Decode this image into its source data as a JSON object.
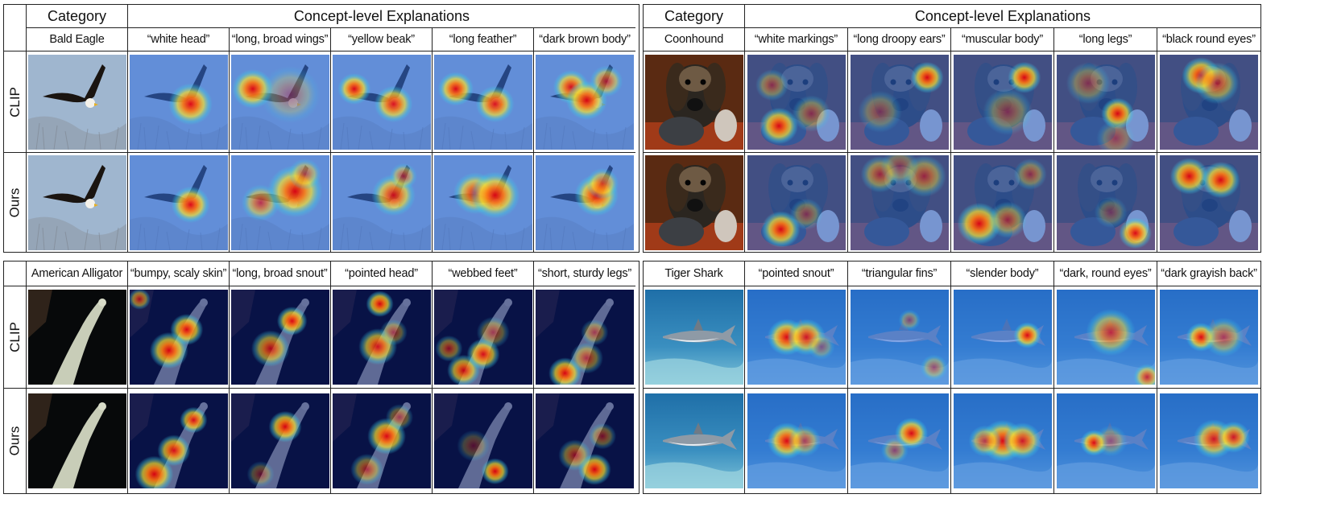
{
  "colors": {
    "heat_red": "#e00010",
    "heat_yellow": "#f8e030",
    "heat_cyan": "#40d0e0",
    "bg_blue": "#2f6de0",
    "bg_deep": "#0a1a78"
  },
  "panels": [
    {
      "category_header": "Category",
      "explanations_header": "Concept-level Explanations",
      "category": "Bald Eagle",
      "scene": "eagle",
      "concepts": [
        "“white head”",
        "“long, broad wings”",
        "“yellow beak”",
        "“long feather”",
        "“dark brown body”"
      ],
      "rows": [
        {
          "label": "CLIP",
          "heatmaps": [
            [
              [
                0.62,
                0.52,
                0.16,
                1
              ]
            ],
            [
              [
                0.22,
                0.36,
                0.15,
                1
              ],
              [
                0.6,
                0.42,
                0.22,
                0.35
              ]
            ],
            [
              [
                0.22,
                0.36,
                0.12,
                1
              ],
              [
                0.62,
                0.52,
                0.14,
                0.95
              ]
            ],
            [
              [
                0.22,
                0.36,
                0.13,
                1
              ],
              [
                0.62,
                0.52,
                0.14,
                0.95
              ]
            ],
            [
              [
                0.36,
                0.34,
                0.13,
                0.95
              ],
              [
                0.52,
                0.48,
                0.15,
                1
              ],
              [
                0.72,
                0.28,
                0.12,
                0.7
              ]
            ]
          ]
        },
        {
          "label": "Ours",
          "heatmaps": [
            [
              [
                0.62,
                0.52,
                0.14,
                1
              ]
            ],
            [
              [
                0.3,
                0.5,
                0.14,
                0.7
              ],
              [
                0.65,
                0.38,
                0.2,
                1
              ],
              [
                0.75,
                0.2,
                0.12,
                0.6
              ]
            ],
            [
              [
                0.62,
                0.42,
                0.16,
                0.9
              ],
              [
                0.72,
                0.22,
                0.1,
                0.6
              ]
            ],
            [
              [
                0.42,
                0.4,
                0.16,
                0.9
              ],
              [
                0.62,
                0.42,
                0.18,
                1
              ]
            ],
            [
              [
                0.62,
                0.42,
                0.16,
                1
              ],
              [
                0.68,
                0.3,
                0.12,
                0.7
              ]
            ]
          ]
        }
      ]
    },
    {
      "category_header": "Category",
      "explanations_header": "Concept-level Explanations",
      "category": "Coonhound",
      "scene": "dog",
      "concepts": [
        "“white markings”",
        "“long droopy ears”",
        "“muscular body”",
        "“long legs”",
        "“black round eyes”"
      ],
      "rows": [
        {
          "label": "CLIP",
          "heatmaps": [
            [
              [
                0.32,
                0.75,
                0.14,
                1
              ],
              [
                0.25,
                0.32,
                0.12,
                0.5
              ],
              [
                0.65,
                0.62,
                0.14,
                0.5
              ]
            ],
            [
              [
                0.78,
                0.24,
                0.12,
                1
              ],
              [
                0.3,
                0.6,
                0.16,
                0.4
              ]
            ],
            [
              [
                0.72,
                0.24,
                0.12,
                1
              ],
              [
                0.55,
                0.6,
                0.18,
                0.45
              ]
            ],
            [
              [
                0.62,
                0.62,
                0.12,
                1
              ],
              [
                0.32,
                0.3,
                0.16,
                0.45
              ],
              [
                0.6,
                0.88,
                0.14,
                0.35
              ]
            ],
            [
              [
                0.42,
                0.22,
                0.14,
                1
              ],
              [
                0.58,
                0.3,
                0.16,
                0.7
              ]
            ]
          ]
        },
        {
          "label": "Ours",
          "heatmaps": [
            [
              [
                0.34,
                0.78,
                0.14,
                1
              ],
              [
                0.6,
                0.62,
                0.12,
                0.45
              ]
            ],
            [
              [
                0.3,
                0.2,
                0.14,
                0.6
              ],
              [
                0.75,
                0.22,
                0.16,
                0.6
              ],
              [
                0.5,
                0.12,
                0.14,
                0.4
              ]
            ],
            [
              [
                0.26,
                0.72,
                0.16,
                1
              ],
              [
                0.55,
                0.68,
                0.14,
                0.6
              ],
              [
                0.78,
                0.2,
                0.12,
                0.5
              ]
            ],
            [
              [
                0.8,
                0.82,
                0.12,
                1
              ],
              [
                0.55,
                0.6,
                0.12,
                0.35
              ]
            ],
            [
              [
                0.3,
                0.22,
                0.14,
                1
              ],
              [
                0.62,
                0.26,
                0.14,
                1
              ]
            ]
          ]
        }
      ]
    },
    {
      "category_header": null,
      "explanations_header": null,
      "category": "American Alligator",
      "scene": "gator",
      "concepts": [
        "“bumpy, scaly skin”",
        "“long, broad snout”",
        "“pointed head”",
        "“webbed feet”",
        "“short, sturdy legs”"
      ],
      "rows": [
        {
          "label": "CLIP",
          "heatmaps": [
            [
              [
                0.58,
                0.42,
                0.12,
                1
              ],
              [
                0.4,
                0.64,
                0.14,
                1
              ],
              [
                0.1,
                0.1,
                0.08,
                0.7
              ]
            ],
            [
              [
                0.62,
                0.33,
                0.11,
                1
              ],
              [
                0.4,
                0.62,
                0.14,
                0.8
              ]
            ],
            [
              [
                0.48,
                0.15,
                0.1,
                1
              ],
              [
                0.46,
                0.6,
                0.14,
                0.9
              ],
              [
                0.62,
                0.45,
                0.1,
                0.5
              ]
            ],
            [
              [
                0.3,
                0.85,
                0.12,
                0.9
              ],
              [
                0.5,
                0.68,
                0.12,
                0.95
              ],
              [
                0.6,
                0.45,
                0.12,
                0.5
              ],
              [
                0.15,
                0.62,
                0.1,
                0.6
              ]
            ],
            [
              [
                0.3,
                0.88,
                0.12,
                1
              ],
              [
                0.52,
                0.72,
                0.12,
                0.6
              ],
              [
                0.6,
                0.45,
                0.1,
                0.5
              ]
            ]
          ]
        },
        {
          "label": "Ours",
          "heatmaps": [
            [
              [
                0.65,
                0.28,
                0.1,
                0.95
              ],
              [
                0.45,
                0.6,
                0.12,
                0.95
              ],
              [
                0.25,
                0.85,
                0.14,
                1
              ]
            ],
            [
              [
                0.55,
                0.35,
                0.12,
                1
              ],
              [
                0.3,
                0.85,
                0.1,
                0.4
              ]
            ],
            [
              [
                0.55,
                0.45,
                0.14,
                1
              ],
              [
                0.35,
                0.8,
                0.12,
                0.6
              ],
              [
                0.68,
                0.25,
                0.1,
                0.5
              ]
            ],
            [
              [
                0.62,
                0.82,
                0.1,
                1
              ],
              [
                0.4,
                0.55,
                0.12,
                0.35
              ]
            ],
            [
              [
                0.6,
                0.8,
                0.12,
                1
              ],
              [
                0.4,
                0.65,
                0.12,
                0.6
              ],
              [
                0.68,
                0.45,
                0.1,
                0.5
              ]
            ]
          ]
        }
      ]
    },
    {
      "category_header": null,
      "explanations_header": null,
      "category": "Tiger Shark",
      "scene": "shark",
      "concepts": [
        "“pointed snout”",
        "“triangular fins”",
        "“slender body”",
        "“dark, round eyes”",
        "“dark grayish back”"
      ],
      "rows": [
        {
          "label": "CLIP",
          "heatmaps": [
            [
              [
                0.4,
                0.5,
                0.14,
                1
              ],
              [
                0.6,
                0.5,
                0.14,
                0.9
              ],
              [
                0.75,
                0.6,
                0.1,
                0.4
              ]
            ],
            [
              [
                0.6,
                0.32,
                0.08,
                0.45
              ],
              [
                0.85,
                0.82,
                0.1,
                0.5
              ]
            ],
            [
              [
                0.75,
                0.48,
                0.1,
                1
              ]
            ],
            [
              [
                0.55,
                0.45,
                0.18,
                0.75
              ],
              [
                0.92,
                0.92,
                0.1,
                0.8
              ]
            ],
            [
              [
                0.42,
                0.5,
                0.11,
                1
              ],
              [
                0.65,
                0.5,
                0.15,
                0.6
              ]
            ]
          ]
        },
        {
          "label": "Ours",
          "heatmaps": [
            [
              [
                0.4,
                0.5,
                0.14,
                1
              ],
              [
                0.58,
                0.5,
                0.12,
                0.6
              ]
            ],
            [
              [
                0.62,
                0.42,
                0.12,
                1
              ],
              [
                0.45,
                0.6,
                0.1,
                0.5
              ]
            ],
            [
              [
                0.5,
                0.5,
                0.16,
                1
              ],
              [
                0.7,
                0.5,
                0.14,
                0.9
              ],
              [
                0.32,
                0.5,
                0.12,
                0.7
              ]
            ],
            [
              [
                0.38,
                0.52,
                0.1,
                1
              ],
              [
                0.55,
                0.5,
                0.12,
                0.4
              ]
            ],
            [
              [
                0.55,
                0.48,
                0.15,
                0.9
              ],
              [
                0.75,
                0.46,
                0.12,
                0.9
              ]
            ]
          ]
        }
      ]
    }
  ]
}
